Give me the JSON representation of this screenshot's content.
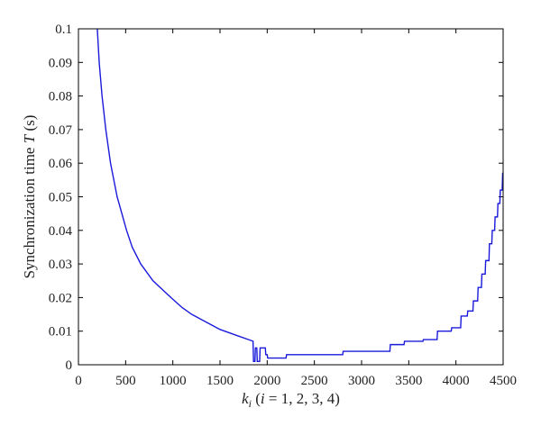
{
  "chart_data": {
    "type": "line",
    "xlabel": "k_i (i = 1, 2, 3, 4)",
    "xlabel_parts": {
      "var": "k",
      "sub": "i",
      "tail": " (",
      "var2": "i",
      "rest": " = 1, 2, 3, 4)"
    },
    "ylabel": "Synchronization time T (s)",
    "ylabel_parts": {
      "pre": "Synchronization time ",
      "var": "T",
      "post": " (s)"
    },
    "xlim": [
      0,
      4500
    ],
    "ylim": [
      0,
      0.1
    ],
    "xticks": [
      0,
      500,
      1000,
      1500,
      2000,
      2500,
      3000,
      3500,
      4000,
      4500
    ],
    "xtick_labels": [
      "0",
      "500",
      "1000",
      "1500",
      "2000",
      "2500",
      "3000",
      "3500",
      "4000",
      "4500"
    ],
    "yticks": [
      0,
      0.01,
      0.02,
      0.03,
      0.04,
      0.05,
      0.06,
      0.07,
      0.08,
      0.09,
      0.1
    ],
    "ytick_labels": [
      "0",
      "0.01",
      "0.02",
      "0.03",
      "0.04",
      "0.05",
      "0.06",
      "0.07",
      "0.08",
      "0.09",
      "0.1"
    ],
    "grid": false,
    "line_color": "#1a1adb",
    "series": [
      {
        "points": [
          [
            200,
            0.1
          ],
          [
            220,
            0.09
          ],
          [
            250,
            0.08
          ],
          [
            290,
            0.07
          ],
          [
            340,
            0.06
          ],
          [
            410,
            0.05
          ],
          [
            510,
            0.04
          ],
          [
            570,
            0.035
          ],
          [
            660,
            0.03
          ],
          [
            790,
            0.025
          ],
          [
            980,
            0.02
          ],
          [
            1100,
            0.017
          ],
          [
            1200,
            0.015
          ],
          [
            1300,
            0.0135
          ],
          [
            1400,
            0.012
          ],
          [
            1500,
            0.0105
          ],
          [
            1600,
            0.0095
          ],
          [
            1700,
            0.0085
          ],
          [
            1800,
            0.0075
          ],
          [
            1850,
            0.007
          ],
          [
            1855,
            0.001
          ],
          [
            1870,
            0.001
          ],
          [
            1875,
            0.005
          ],
          [
            1890,
            0.005
          ],
          [
            1895,
            0.001
          ],
          [
            1920,
            0.001
          ],
          [
            1925,
            0.005
          ],
          [
            1980,
            0.005
          ],
          [
            1985,
            0.003
          ],
          [
            2000,
            0.003
          ],
          [
            2005,
            0.002
          ],
          [
            2200,
            0.002
          ],
          [
            2205,
            0.003
          ],
          [
            2800,
            0.003
          ],
          [
            2805,
            0.004
          ],
          [
            3300,
            0.004
          ],
          [
            3305,
            0.006
          ],
          [
            3450,
            0.006
          ],
          [
            3455,
            0.007
          ],
          [
            3650,
            0.007
          ],
          [
            3655,
            0.0075
          ],
          [
            3800,
            0.0075
          ],
          [
            3805,
            0.01
          ],
          [
            3950,
            0.01
          ],
          [
            3955,
            0.011
          ],
          [
            4050,
            0.011
          ],
          [
            4055,
            0.0145
          ],
          [
            4120,
            0.0145
          ],
          [
            4125,
            0.016
          ],
          [
            4180,
            0.016
          ],
          [
            4185,
            0.019
          ],
          [
            4230,
            0.019
          ],
          [
            4235,
            0.023
          ],
          [
            4270,
            0.023
          ],
          [
            4275,
            0.027
          ],
          [
            4310,
            0.027
          ],
          [
            4315,
            0.031
          ],
          [
            4350,
            0.031
          ],
          [
            4355,
            0.036
          ],
          [
            4380,
            0.036
          ],
          [
            4385,
            0.04
          ],
          [
            4410,
            0.04
          ],
          [
            4415,
            0.044
          ],
          [
            4440,
            0.044
          ],
          [
            4445,
            0.048
          ],
          [
            4465,
            0.048
          ],
          [
            4470,
            0.052
          ],
          [
            4490,
            0.052
          ],
          [
            4495,
            0.057
          ],
          [
            4500,
            0.057
          ]
        ]
      }
    ]
  }
}
